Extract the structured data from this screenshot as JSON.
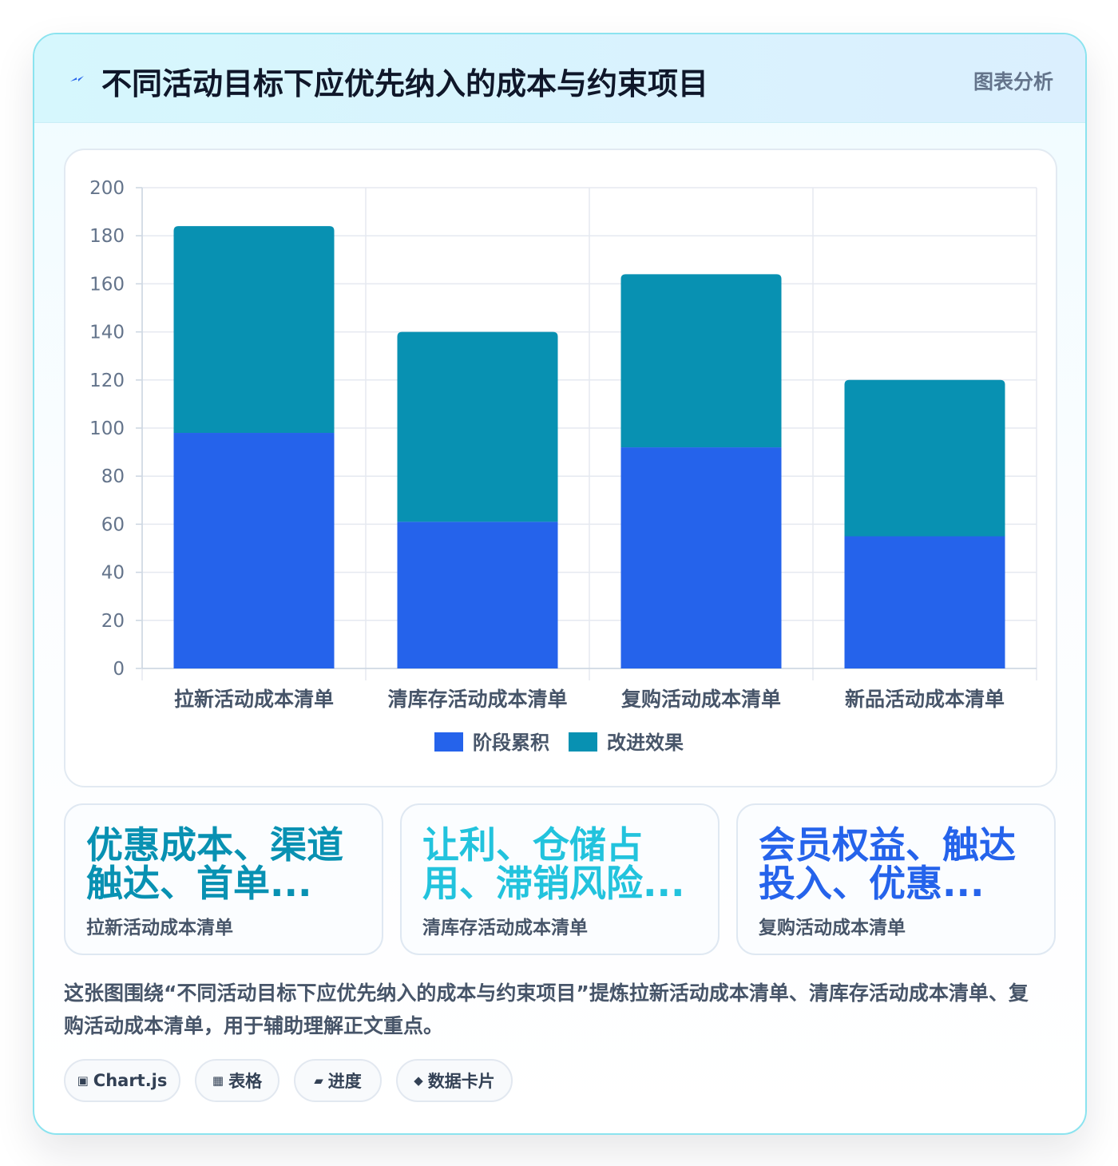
{
  "header": {
    "title": "不同活动目标下应优先纳入的成本与约束项目",
    "tag": "图表分析",
    "icon": "lightning-icon"
  },
  "chart_data": {
    "type": "bar",
    "stacked": true,
    "categories": [
      "拉新活动成本清单",
      "清库存活动成本清单",
      "复购活动成本清单",
      "新品活动成本清单"
    ],
    "series": [
      {
        "name": "阶段累积",
        "values": [
          98,
          61,
          92,
          55
        ],
        "color": "#2563eb"
      },
      {
        "name": "改进效果",
        "values": [
          86,
          79,
          72,
          65
        ],
        "color": "#0891b2"
      }
    ],
    "ylim": [
      0,
      200
    ],
    "yticks": [
      0,
      20,
      40,
      60,
      80,
      100,
      120,
      140,
      160,
      180,
      200
    ],
    "grid": true,
    "legend": "bottom"
  },
  "stats": [
    {
      "value": "优惠成本、渠道触达、首单...",
      "label": "拉新活动成本清单",
      "color": "#0891b2"
    },
    {
      "value": "让利、仓储占用、滞销风险...",
      "label": "清库存活动成本清单",
      "color": "#22c3dd"
    },
    {
      "value": "会员权益、触达投入、优惠...",
      "label": "复购活动成本清单",
      "color": "#2563eb"
    }
  ],
  "description": "这张图围绕“不同活动目标下应优先纳入的成本与约束项目”提炼拉新活动成本清单、清库存活动成本清单、复购活动成本清单，用于辅助理解正文重点。",
  "chips": [
    {
      "icon": "▣",
      "label": "Chart.js"
    },
    {
      "icon": "▦",
      "label": "表格"
    },
    {
      "icon": "▰",
      "label": "进度"
    },
    {
      "icon": "◆",
      "label": "数据卡片"
    }
  ]
}
